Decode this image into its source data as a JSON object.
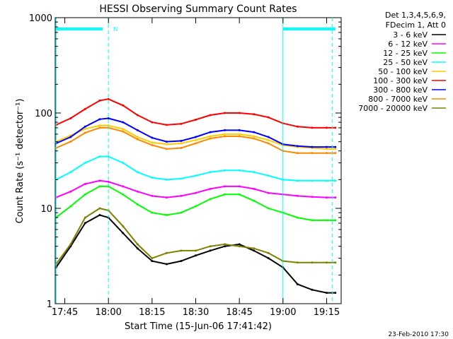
{
  "chart_data": {
    "type": "line",
    "title": "HESSI Observing Summary Count Rates",
    "xlabel": "Start Time (15-Jun-06 17:41:42)",
    "ylabel": "Count Rate (s⁻¹ detector⁻¹)",
    "yscale": "log",
    "ylim": [
      1,
      1000
    ],
    "xlim": [
      "17:41:42",
      "19:20:00"
    ],
    "x_ticks": [
      "17:45",
      "18:00",
      "18:15",
      "18:30",
      "18:45",
      "19:00",
      "19:15"
    ],
    "y_ticks": [
      "1",
      "10",
      "100",
      "1000"
    ],
    "grid": false,
    "legend_placement": "right",
    "legend_header": [
      "Det 1,3,4,5,6,9,",
      "FDecim 1, Att 0"
    ],
    "annotation": "N",
    "footer": "23-Feb-2010 17:30",
    "x": [
      "17:42",
      "17:47",
      "17:52",
      "17:57",
      "18:00",
      "18:05",
      "18:10",
      "18:15",
      "18:20",
      "18:25",
      "18:30",
      "18:35",
      "18:40",
      "18:45",
      "18:50",
      "18:55",
      "19:00",
      "19:05",
      "19:10",
      "19:15",
      "19:18"
    ],
    "series": [
      {
        "name": "3 - 6 keV",
        "color": "#000000",
        "values": [
          2.4,
          4.0,
          7.0,
          8.5,
          8.0,
          5.5,
          3.8,
          2.8,
          2.6,
          2.8,
          3.2,
          3.6,
          4.0,
          4.2,
          3.6,
          3.0,
          2.4,
          1.6,
          1.4,
          1.3,
          1.3
        ]
      },
      {
        "name": "6 - 12 keV",
        "color": "#ff00ff",
        "values": [
          13,
          15,
          18,
          19.5,
          19,
          17,
          15,
          13.5,
          13,
          13.5,
          14.5,
          16,
          17,
          17,
          16,
          14.5,
          14,
          13.5,
          13.2,
          13,
          13
        ]
      },
      {
        "name": "12 - 25 keV",
        "color": "#00ff00",
        "values": [
          8,
          10.5,
          14,
          17,
          17,
          14,
          11,
          9,
          8.5,
          9,
          10.5,
          12.5,
          14,
          14,
          12,
          10,
          9,
          8,
          7.5,
          7.5,
          7.5
        ]
      },
      {
        "name": "25 - 50 keV",
        "color": "#00ffff",
        "values": [
          20,
          24,
          30,
          35,
          35,
          30,
          24,
          21,
          20,
          20.5,
          22,
          24,
          25,
          25,
          24,
          22,
          20,
          19.5,
          19.5,
          19.5,
          19.5
        ]
      },
      {
        "name": "50 - 100 keV",
        "color": "#ffcc00",
        "values": [
          50,
          58,
          68,
          74,
          74,
          68,
          56,
          49,
          47,
          48,
          52,
          57,
          60,
          60,
          57,
          52,
          46,
          44,
          43,
          42,
          42
        ]
      },
      {
        "name": "100 - 300 keV",
        "color": "#ff0000",
        "values": [
          75,
          88,
          110,
          135,
          140,
          120,
          95,
          80,
          75,
          77,
          85,
          95,
          100,
          100,
          97,
          90,
          78,
          72,
          70,
          70,
          70
        ]
      },
      {
        "name": "300 - 800 keV",
        "color": "#0000ff",
        "values": [
          48,
          56,
          72,
          86,
          88,
          80,
          66,
          55,
          50,
          51,
          56,
          63,
          66,
          66,
          63,
          56,
          47,
          45,
          44,
          44,
          44
        ]
      },
      {
        "name": "800 - 7000 keV",
        "color": "#ff8800",
        "values": [
          43,
          50,
          62,
          70,
          70,
          64,
          53,
          46,
          42,
          43,
          48,
          54,
          57,
          57,
          54,
          48,
          40,
          38,
          38,
          38,
          38
        ]
      },
      {
        "name": "7000 - 20000 keV",
        "color": "#808000",
        "values": [
          2.6,
          4.2,
          8.0,
          10.0,
          9.5,
          6.5,
          4.2,
          3.0,
          3.4,
          3.6,
          3.6,
          4.0,
          4.2,
          4.0,
          3.8,
          3.4,
          2.8,
          2.7,
          2.7,
          2.7,
          2.7
        ]
      }
    ],
    "markers": {
      "solid_vlines": [
        "17:42",
        "19:00"
      ],
      "dashed_vlines": [
        "18:00",
        "19:17"
      ],
      "flag_bars": [
        [
          "17:42",
          "17:58"
        ],
        [
          "19:00",
          "19:18"
        ]
      ]
    }
  }
}
